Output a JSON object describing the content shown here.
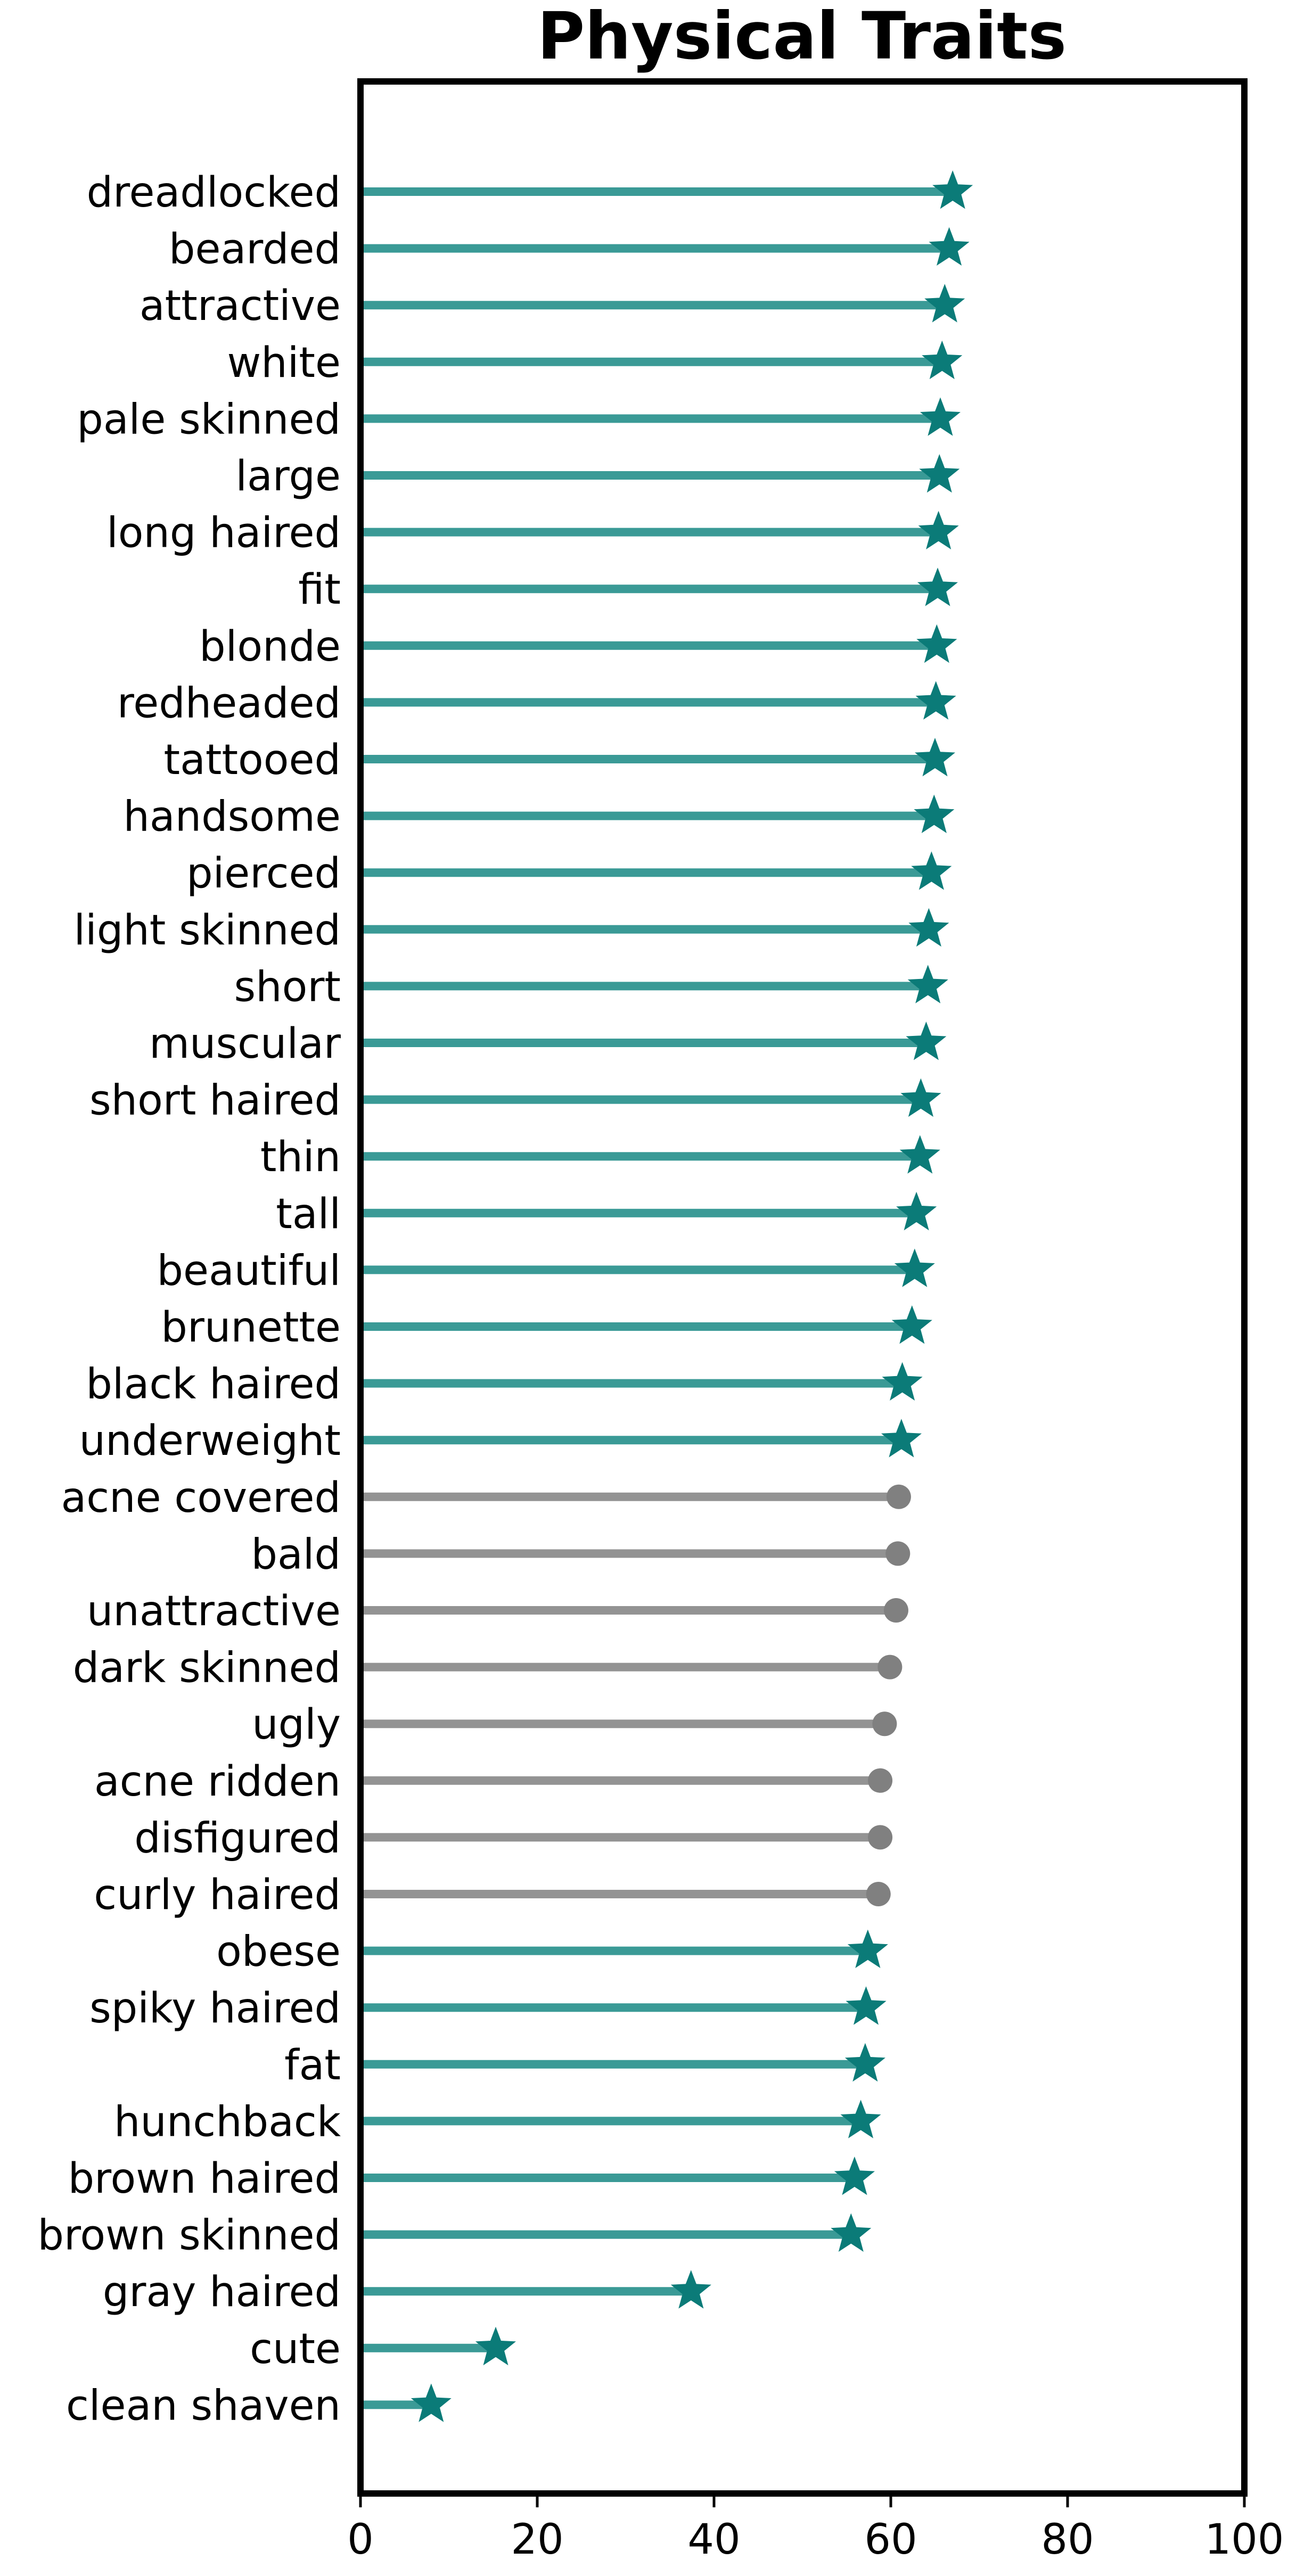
{
  "chart_data": {
    "type": "lollipop",
    "title": "Physical Traits",
    "xlabel": "",
    "ylabel": "",
    "xlim": [
      0,
      100
    ],
    "xticks": [
      0,
      20,
      40,
      60,
      80,
      100
    ],
    "grid": false,
    "colors": {
      "highlight_line": "#3a9a96",
      "highlight_marker": "#0b7b78",
      "neutral_line": "#939393",
      "neutral_marker": "#808080",
      "frame": "#000000",
      "text": "#000000"
    },
    "markers": {
      "highlight": "star",
      "neutral": "circle"
    },
    "items": [
      {
        "label": "dreadlocked",
        "value": 67.0,
        "highlight": true
      },
      {
        "label": "bearded",
        "value": 66.6,
        "highlight": true
      },
      {
        "label": "attractive",
        "value": 66.1,
        "highlight": true
      },
      {
        "label": "white",
        "value": 65.8,
        "highlight": true
      },
      {
        "label": "pale skinned",
        "value": 65.6,
        "highlight": true
      },
      {
        "label": "large",
        "value": 65.5,
        "highlight": true
      },
      {
        "label": "long haired",
        "value": 65.4,
        "highlight": true
      },
      {
        "label": "fit",
        "value": 65.3,
        "highlight": true
      },
      {
        "label": "blonde",
        "value": 65.2,
        "highlight": true
      },
      {
        "label": "redheaded",
        "value": 65.1,
        "highlight": true
      },
      {
        "label": "tattooed",
        "value": 65.0,
        "highlight": true
      },
      {
        "label": "handsome",
        "value": 64.9,
        "highlight": true
      },
      {
        "label": "pierced",
        "value": 64.6,
        "highlight": true
      },
      {
        "label": "light skinned",
        "value": 64.3,
        "highlight": true
      },
      {
        "label": "short",
        "value": 64.2,
        "highlight": true
      },
      {
        "label": "muscular",
        "value": 64.0,
        "highlight": true
      },
      {
        "label": "short haired",
        "value": 63.4,
        "highlight": true
      },
      {
        "label": "thin",
        "value": 63.3,
        "highlight": true
      },
      {
        "label": "tall",
        "value": 62.9,
        "highlight": true
      },
      {
        "label": "beautiful",
        "value": 62.7,
        "highlight": true
      },
      {
        "label": "brunette",
        "value": 62.4,
        "highlight": true
      },
      {
        "label": "black haired",
        "value": 61.3,
        "highlight": true
      },
      {
        "label": "underweight",
        "value": 61.2,
        "highlight": true
      },
      {
        "label": "acne covered",
        "value": 60.9,
        "highlight": false
      },
      {
        "label": "bald",
        "value": 60.8,
        "highlight": false
      },
      {
        "label": "unattractive",
        "value": 60.6,
        "highlight": false
      },
      {
        "label": "dark skinned",
        "value": 59.9,
        "highlight": false
      },
      {
        "label": "ugly",
        "value": 59.3,
        "highlight": false
      },
      {
        "label": "acne ridden",
        "value": 58.8,
        "highlight": false
      },
      {
        "label": "disfigured",
        "value": 58.8,
        "highlight": false
      },
      {
        "label": "curly haired",
        "value": 58.6,
        "highlight": false
      },
      {
        "label": "obese",
        "value": 57.4,
        "highlight": true
      },
      {
        "label": "spiky haired",
        "value": 57.2,
        "highlight": true
      },
      {
        "label": "fat",
        "value": 57.1,
        "highlight": true
      },
      {
        "label": "hunchback",
        "value": 56.6,
        "highlight": true
      },
      {
        "label": "brown haired",
        "value": 55.9,
        "highlight": true
      },
      {
        "label": "brown skinned",
        "value": 55.5,
        "highlight": true
      },
      {
        "label": "gray haired",
        "value": 37.4,
        "highlight": true
      },
      {
        "label": "cute",
        "value": 15.3,
        "highlight": true
      },
      {
        "label": "clean shaven",
        "value": 8.0,
        "highlight": true
      }
    ]
  }
}
